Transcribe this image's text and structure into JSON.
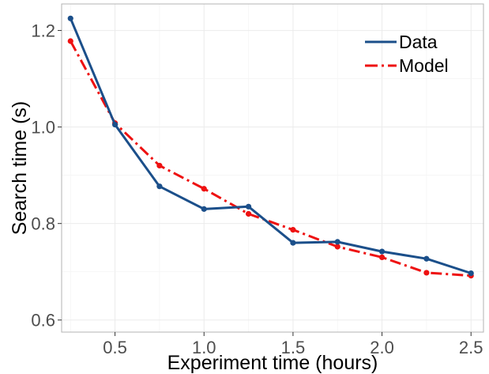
{
  "chart_data": {
    "type": "line",
    "title": "",
    "xlabel": "Experiment time (hours)",
    "ylabel": "Search time (s)",
    "xlim": [
      0.2,
      2.57
    ],
    "ylim": [
      0.575,
      1.255
    ],
    "x_ticks": [
      0.5,
      1.0,
      1.5,
      2.0,
      2.5
    ],
    "x_tick_labels": [
      "0.5",
      "1.0",
      "1.5",
      "2.0",
      "2.5"
    ],
    "y_ticks": [
      0.6,
      0.8,
      1.0,
      1.2
    ],
    "y_tick_labels": [
      "0.6",
      "0.8",
      "1.0",
      "1.2"
    ],
    "grid": true,
    "legend_position": "top-right",
    "series": [
      {
        "name": "Data",
        "color": "#1b4f8a",
        "line_style": "solid",
        "x": [
          0.25,
          0.5,
          0.75,
          1.0,
          1.25,
          1.5,
          1.75,
          2.0,
          2.25,
          2.5
        ],
        "y": [
          1.225,
          1.005,
          0.877,
          0.83,
          0.835,
          0.76,
          0.762,
          0.742,
          0.727,
          0.697
        ]
      },
      {
        "name": "Model",
        "color": "#ee1111",
        "line_style": "dashdot",
        "x": [
          0.25,
          0.5,
          0.75,
          1.0,
          1.25,
          1.5,
          1.75,
          2.0,
          2.25,
          2.5
        ],
        "y": [
          1.178,
          1.008,
          0.92,
          0.872,
          0.82,
          0.787,
          0.752,
          0.73,
          0.698,
          0.692
        ]
      }
    ]
  }
}
